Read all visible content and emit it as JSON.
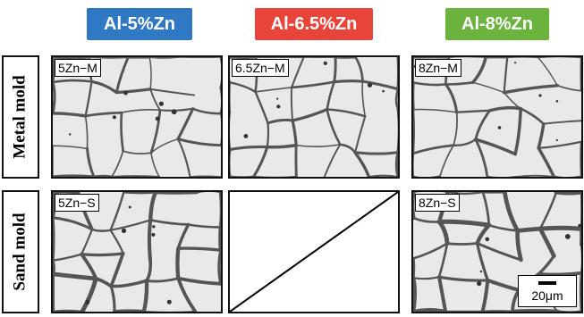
{
  "headers": [
    {
      "label": "Al-5%Zn",
      "color": "#2f78c4"
    },
    {
      "label": "Al-6.5%Zn",
      "color": "#e8443a"
    },
    {
      "label": "Al-8%Zn",
      "color": "#6ab33c"
    }
  ],
  "rows": [
    {
      "label": "Metal mold"
    },
    {
      "label": "Sand mold"
    }
  ],
  "panels": [
    {
      "label": "5Zn−M",
      "empty": false
    },
    {
      "label": "6.5Zn−M",
      "empty": false
    },
    {
      "label": "8Zn−M",
      "empty": false
    },
    {
      "label": "5Zn−S",
      "empty": false
    },
    {
      "label": "",
      "empty": true
    },
    {
      "label": "8Zn−S",
      "empty": false
    }
  ],
  "scale_bar": {
    "label": "20μm"
  }
}
